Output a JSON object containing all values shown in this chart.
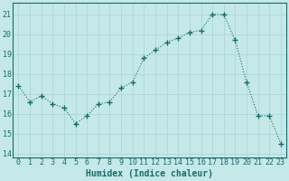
{
  "x": [
    0,
    1,
    2,
    3,
    4,
    5,
    6,
    7,
    8,
    9,
    10,
    11,
    12,
    13,
    14,
    15,
    16,
    17,
    18,
    19,
    20,
    21,
    22,
    23
  ],
  "y": [
    17.4,
    16.6,
    16.9,
    16.5,
    16.3,
    15.5,
    15.9,
    16.5,
    16.6,
    17.3,
    17.6,
    18.8,
    19.2,
    19.6,
    19.8,
    20.1,
    20.2,
    21.0,
    21.0,
    19.7,
    17.6,
    15.9,
    15.9,
    14.5
  ],
  "xlabel": "Humidex (Indice chaleur)",
  "ylabel_ticks": [
    14,
    15,
    16,
    17,
    18,
    19,
    20,
    21
  ],
  "xlim": [
    -0.5,
    23.5
  ],
  "ylim": [
    13.8,
    21.6
  ],
  "bg_color": "#c5e8e8",
  "grid_color": "#aad4d4",
  "line_color": "#1a6b6b",
  "marker_color": "#1a6b6b",
  "xlabel_color": "#1a6b6b",
  "tick_color": "#1a6b6b",
  "font_size_label": 7,
  "font_size_tick": 6
}
